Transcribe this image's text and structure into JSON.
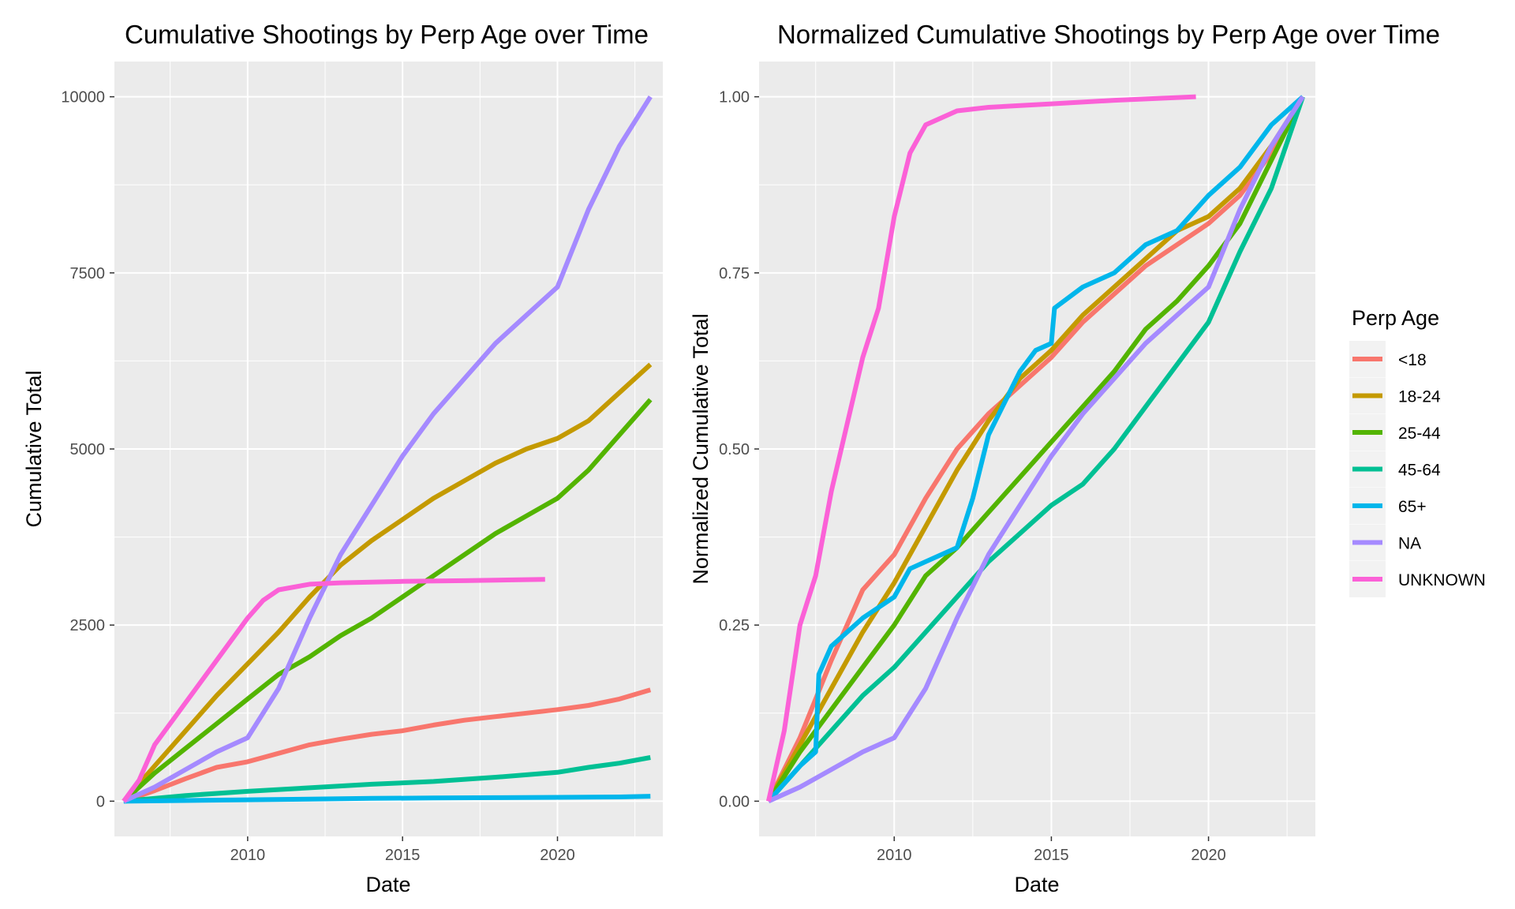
{
  "chart_data": [
    {
      "type": "line",
      "title": "Cumulative Shootings by Perp Age over Time",
      "xlabel": "Date",
      "ylabel": "Cumulative Total",
      "xlim": [
        2005.7,
        2023.4
      ],
      "ylim": [
        -500,
        10500
      ],
      "x_ticks": [
        2010,
        2015,
        2020
      ],
      "x_tick_labels": [
        "2010",
        "2015",
        "2020"
      ],
      "y_ticks": [
        0,
        2500,
        5000,
        7500,
        10000
      ],
      "y_tick_labels": [
        "0",
        "2500",
        "5000",
        "7500",
        "10000"
      ],
      "grid": true,
      "series": [
        {
          "name": "<18",
          "color": "#F8766D",
          "points": [
            [
              2006,
              0
            ],
            [
              2007,
              150
            ],
            [
              2008,
              320
            ],
            [
              2009,
              480
            ],
            [
              2010,
              560
            ],
            [
              2011,
              680
            ],
            [
              2012,
              800
            ],
            [
              2013,
              880
            ],
            [
              2014,
              950
            ],
            [
              2015,
              1000
            ],
            [
              2016,
              1080
            ],
            [
              2017,
              1150
            ],
            [
              2018,
              1200
            ],
            [
              2019,
              1250
            ],
            [
              2020,
              1300
            ],
            [
              2021,
              1360
            ],
            [
              2022,
              1450
            ],
            [
              2023,
              1580
            ]
          ]
        },
        {
          "name": "18-24",
          "color": "#C49A00",
          "points": [
            [
              2006,
              0
            ],
            [
              2007,
              500
            ],
            [
              2008,
              1000
            ],
            [
              2009,
              1500
            ],
            [
              2010,
              1950
            ],
            [
              2011,
              2400
            ],
            [
              2012,
              2900
            ],
            [
              2013,
              3350
            ],
            [
              2014,
              3700
            ],
            [
              2015,
              4000
            ],
            [
              2016,
              4300
            ],
            [
              2017,
              4550
            ],
            [
              2018,
              4800
            ],
            [
              2019,
              5000
            ],
            [
              2020,
              5150
            ],
            [
              2021,
              5400
            ],
            [
              2022,
              5800
            ],
            [
              2023,
              6200
            ]
          ]
        },
        {
          "name": "25-44",
          "color": "#53B400",
          "points": [
            [
              2006,
              0
            ],
            [
              2007,
              400
            ],
            [
              2008,
              750
            ],
            [
              2009,
              1100
            ],
            [
              2010,
              1450
            ],
            [
              2011,
              1800
            ],
            [
              2012,
              2050
            ],
            [
              2013,
              2350
            ],
            [
              2014,
              2600
            ],
            [
              2015,
              2900
            ],
            [
              2016,
              3200
            ],
            [
              2017,
              3500
            ],
            [
              2018,
              3800
            ],
            [
              2019,
              4050
            ],
            [
              2020,
              4300
            ],
            [
              2021,
              4700
            ],
            [
              2022,
              5200
            ],
            [
              2023,
              5700
            ]
          ]
        },
        {
          "name": "45-64",
          "color": "#00C094",
          "points": [
            [
              2006,
              0
            ],
            [
              2008,
              80
            ],
            [
              2010,
              140
            ],
            [
              2012,
              190
            ],
            [
              2014,
              240
            ],
            [
              2016,
              280
            ],
            [
              2018,
              340
            ],
            [
              2020,
              410
            ],
            [
              2021,
              480
            ],
            [
              2022,
              540
            ],
            [
              2023,
              620
            ]
          ]
        },
        {
          "name": "65+",
          "color": "#00B6EB",
          "points": [
            [
              2006,
              0
            ],
            [
              2008,
              10
            ],
            [
              2010,
              20
            ],
            [
              2012,
              30
            ],
            [
              2014,
              40
            ],
            [
              2016,
              45
            ],
            [
              2018,
              50
            ],
            [
              2020,
              55
            ],
            [
              2022,
              60
            ],
            [
              2023,
              70
            ]
          ]
        },
        {
          "name": "NA",
          "color": "#A58AFF",
          "points": [
            [
              2006,
              0
            ],
            [
              2007,
              200
            ],
            [
              2008,
              450
            ],
            [
              2009,
              700
            ],
            [
              2010,
              900
            ],
            [
              2011,
              1600
            ],
            [
              2012,
              2600
            ],
            [
              2013,
              3500
            ],
            [
              2014,
              4200
            ],
            [
              2015,
              4900
            ],
            [
              2016,
              5500
            ],
            [
              2017,
              6000
            ],
            [
              2018,
              6500
            ],
            [
              2019,
              6900
            ],
            [
              2020,
              7300
            ],
            [
              2021,
              8400
            ],
            [
              2022,
              9300
            ],
            [
              2023,
              10000
            ]
          ]
        },
        {
          "name": "UNKNOWN",
          "color": "#FB61D7",
          "points": [
            [
              2006,
              0
            ],
            [
              2006.5,
              300
            ],
            [
              2007,
              800
            ],
            [
              2008,
              1400
            ],
            [
              2009,
              2000
            ],
            [
              2010,
              2600
            ],
            [
              2010.5,
              2850
            ],
            [
              2011,
              3000
            ],
            [
              2012,
              3080
            ],
            [
              2013,
              3100
            ],
            [
              2015,
              3120
            ],
            [
              2017,
              3130
            ],
            [
              2019.6,
              3150
            ]
          ]
        }
      ]
    },
    {
      "type": "line",
      "title": "Normalized Cumulative Shootings by Perp Age over Time",
      "xlabel": "Date",
      "ylabel": "Normalized Cumulative Total",
      "xlim": [
        2005.7,
        2023.4
      ],
      "ylim": [
        -0.05,
        1.05
      ],
      "x_ticks": [
        2010,
        2015,
        2020
      ],
      "x_tick_labels": [
        "2010",
        "2015",
        "2020"
      ],
      "y_ticks": [
        0,
        0.25,
        0.5,
        0.75,
        1.0
      ],
      "y_tick_labels": [
        "0.00",
        "0.25",
        "0.50",
        "0.75",
        "1.00"
      ],
      "grid": true,
      "series": [
        {
          "name": "<18",
          "color": "#F8766D",
          "points": [
            [
              2006,
              0
            ],
            [
              2007,
              0.09
            ],
            [
              2008,
              0.2
            ],
            [
              2009,
              0.3
            ],
            [
              2010,
              0.35
            ],
            [
              2011,
              0.43
            ],
            [
              2012,
              0.5
            ],
            [
              2013,
              0.55
            ],
            [
              2014,
              0.59
            ],
            [
              2015,
              0.63
            ],
            [
              2016,
              0.68
            ],
            [
              2017,
              0.72
            ],
            [
              2018,
              0.76
            ],
            [
              2019,
              0.79
            ],
            [
              2020,
              0.82
            ],
            [
              2021,
              0.86
            ],
            [
              2022,
              0.92
            ],
            [
              2023,
              1.0
            ]
          ]
        },
        {
          "name": "18-24",
          "color": "#C49A00",
          "points": [
            [
              2006,
              0
            ],
            [
              2007,
              0.08
            ],
            [
              2008,
              0.16
            ],
            [
              2009,
              0.24
            ],
            [
              2010,
              0.31
            ],
            [
              2011,
              0.39
            ],
            [
              2012,
              0.47
            ],
            [
              2013,
              0.54
            ],
            [
              2014,
              0.6
            ],
            [
              2015,
              0.64
            ],
            [
              2016,
              0.69
            ],
            [
              2017,
              0.73
            ],
            [
              2018,
              0.77
            ],
            [
              2019,
              0.81
            ],
            [
              2020,
              0.83
            ],
            [
              2021,
              0.87
            ],
            [
              2022,
              0.93
            ],
            [
              2023,
              1.0
            ]
          ]
        },
        {
          "name": "25-44",
          "color": "#53B400",
          "points": [
            [
              2006,
              0
            ],
            [
              2007,
              0.07
            ],
            [
              2008,
              0.13
            ],
            [
              2009,
              0.19
            ],
            [
              2010,
              0.25
            ],
            [
              2011,
              0.32
            ],
            [
              2012,
              0.36
            ],
            [
              2013,
              0.41
            ],
            [
              2014,
              0.46
            ],
            [
              2015,
              0.51
            ],
            [
              2016,
              0.56
            ],
            [
              2017,
              0.61
            ],
            [
              2018,
              0.67
            ],
            [
              2019,
              0.71
            ],
            [
              2020,
              0.76
            ],
            [
              2021,
              0.82
            ],
            [
              2022,
              0.91
            ],
            [
              2023,
              1.0
            ]
          ]
        },
        {
          "name": "45-64",
          "color": "#00C094",
          "points": [
            [
              2006,
              0
            ],
            [
              2007,
              0.05
            ],
            [
              2008,
              0.1
            ],
            [
              2009,
              0.15
            ],
            [
              2010,
              0.19
            ],
            [
              2011,
              0.24
            ],
            [
              2012,
              0.29
            ],
            [
              2013,
              0.34
            ],
            [
              2014,
              0.38
            ],
            [
              2015,
              0.42
            ],
            [
              2016,
              0.45
            ],
            [
              2017,
              0.5
            ],
            [
              2018,
              0.56
            ],
            [
              2019,
              0.62
            ],
            [
              2020,
              0.68
            ],
            [
              2021,
              0.78
            ],
            [
              2022,
              0.87
            ],
            [
              2023,
              1.0
            ]
          ]
        },
        {
          "name": "65+",
          "color": "#00B6EB",
          "points": [
            [
              2006,
              0
            ],
            [
              2007,
              0.05
            ],
            [
              2007.5,
              0.07
            ],
            [
              2007.6,
              0.18
            ],
            [
              2008,
              0.22
            ],
            [
              2009,
              0.26
            ],
            [
              2010,
              0.29
            ],
            [
              2010.5,
              0.33
            ],
            [
              2011,
              0.34
            ],
            [
              2012,
              0.36
            ],
            [
              2012.5,
              0.43
            ],
            [
              2013,
              0.52
            ],
            [
              2014,
              0.61
            ],
            [
              2014.5,
              0.64
            ],
            [
              2015,
              0.65
            ],
            [
              2015.1,
              0.7
            ],
            [
              2016,
              0.73
            ],
            [
              2017,
              0.75
            ],
            [
              2018,
              0.79
            ],
            [
              2019,
              0.81
            ],
            [
              2020,
              0.86
            ],
            [
              2021,
              0.9
            ],
            [
              2022,
              0.96
            ],
            [
              2023,
              1.0
            ]
          ]
        },
        {
          "name": "NA",
          "color": "#A58AFF",
          "points": [
            [
              2006,
              0
            ],
            [
              2007,
              0.02
            ],
            [
              2008,
              0.045
            ],
            [
              2009,
              0.07
            ],
            [
              2010,
              0.09
            ],
            [
              2011,
              0.16
            ],
            [
              2012,
              0.26
            ],
            [
              2013,
              0.35
            ],
            [
              2014,
              0.42
            ],
            [
              2015,
              0.49
            ],
            [
              2016,
              0.55
            ],
            [
              2017,
              0.6
            ],
            [
              2018,
              0.65
            ],
            [
              2019,
              0.69
            ],
            [
              2020,
              0.73
            ],
            [
              2021,
              0.84
            ],
            [
              2022,
              0.93
            ],
            [
              2023,
              1.0
            ]
          ]
        },
        {
          "name": "UNKNOWN",
          "color": "#FB61D7",
          "points": [
            [
              2006,
              0
            ],
            [
              2006.5,
              0.1
            ],
            [
              2007,
              0.25
            ],
            [
              2007.5,
              0.32
            ],
            [
              2008,
              0.44
            ],
            [
              2009,
              0.63
            ],
            [
              2009.5,
              0.7
            ],
            [
              2010,
              0.83
            ],
            [
              2010.5,
              0.92
            ],
            [
              2011,
              0.96
            ],
            [
              2012,
              0.98
            ],
            [
              2013,
              0.985
            ],
            [
              2015,
              0.99
            ],
            [
              2017,
              0.995
            ],
            [
              2019.6,
              1.0
            ]
          ]
        }
      ]
    }
  ],
  "legend": {
    "title": "Perp Age",
    "placement": "right",
    "items": [
      {
        "label": "<18",
        "color": "#F8766D"
      },
      {
        "label": "18-24",
        "color": "#C49A00"
      },
      {
        "label": "25-44",
        "color": "#53B400"
      },
      {
        "label": "45-64",
        "color": "#00C094"
      },
      {
        "label": "65+",
        "color": "#00B6EB"
      },
      {
        "label": "NA",
        "color": "#A58AFF"
      },
      {
        "label": "UNKNOWN",
        "color": "#FB61D7"
      }
    ]
  },
  "colors": {
    "panel_background": "#EBEBEB",
    "grid_major": "#FFFFFF"
  }
}
